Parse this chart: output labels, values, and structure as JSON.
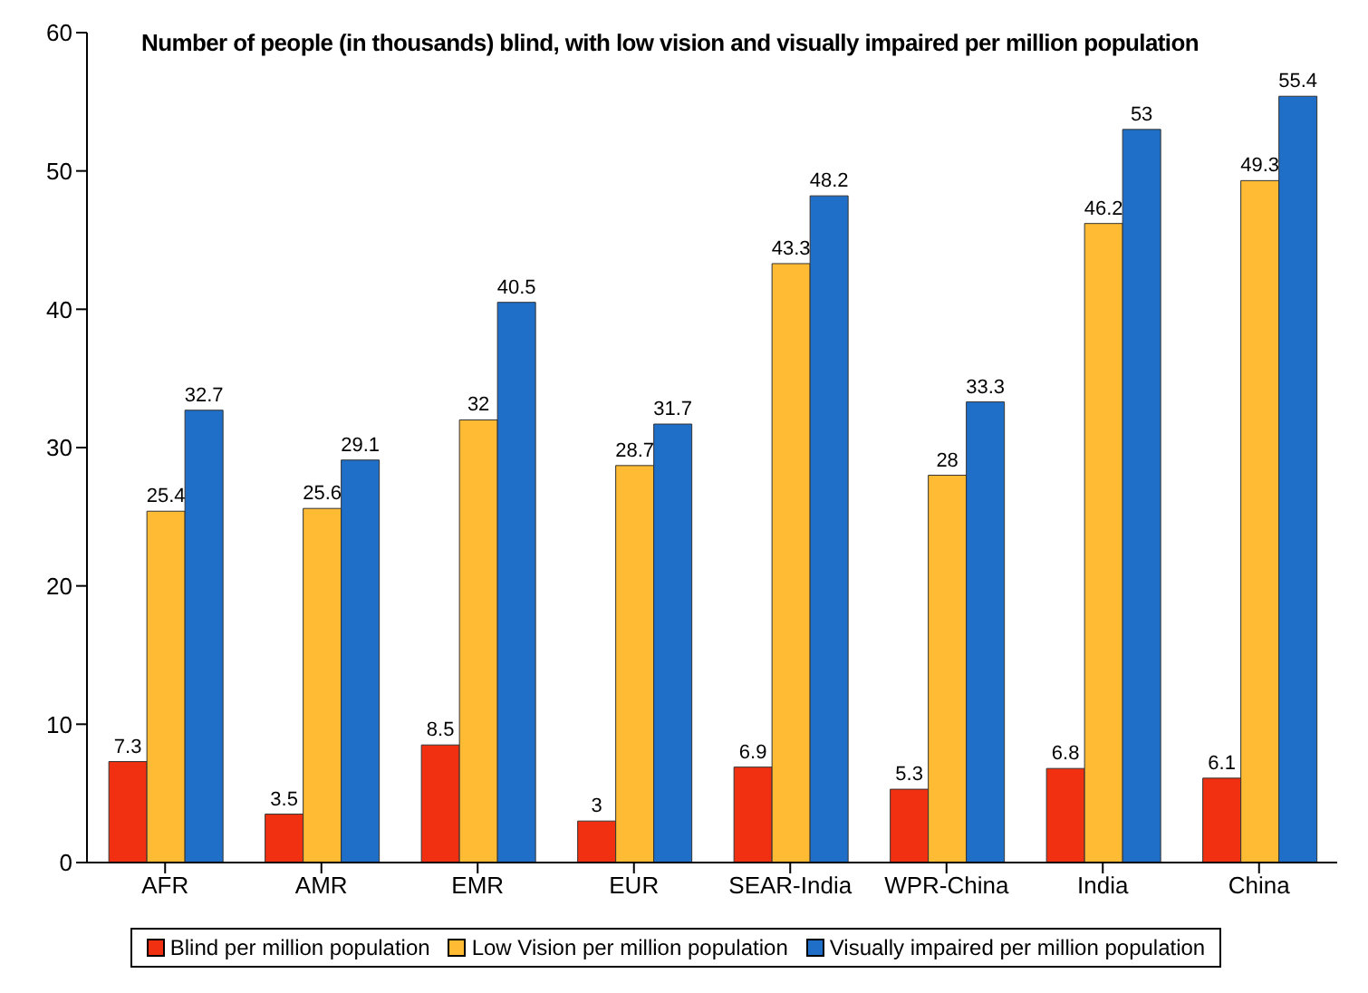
{
  "chart_data": {
    "type": "bar",
    "title": "Number of people (in thousands)  blind, with low vision and visually impaired per million population",
    "categories": [
      "AFR",
      "AMR",
      "EMR",
      "EUR",
      "SEAR-India",
      "WPR-China",
      "India",
      "China"
    ],
    "series": [
      {
        "name": "Blind per million population",
        "color": "#f03010",
        "values": [
          7.3,
          3.5,
          8.5,
          3,
          6.9,
          5.3,
          6.8,
          6.1
        ]
      },
      {
        "name": "Low Vision per million population",
        "color": "#ffbb33",
        "values": [
          25.4,
          25.6,
          32,
          28.7,
          43.3,
          28,
          46.2,
          49.3
        ]
      },
      {
        "name": "Visually impaired per million population",
        "color": "#1f6fc8",
        "values": [
          32.7,
          29.1,
          40.5,
          31.7,
          48.2,
          33.3,
          53,
          55.4
        ]
      }
    ],
    "ylim": [
      0,
      60
    ],
    "yticks": [
      0,
      10,
      20,
      30,
      40,
      50,
      60
    ],
    "grid": false,
    "legend": "bottom",
    "data_labels": true
  }
}
